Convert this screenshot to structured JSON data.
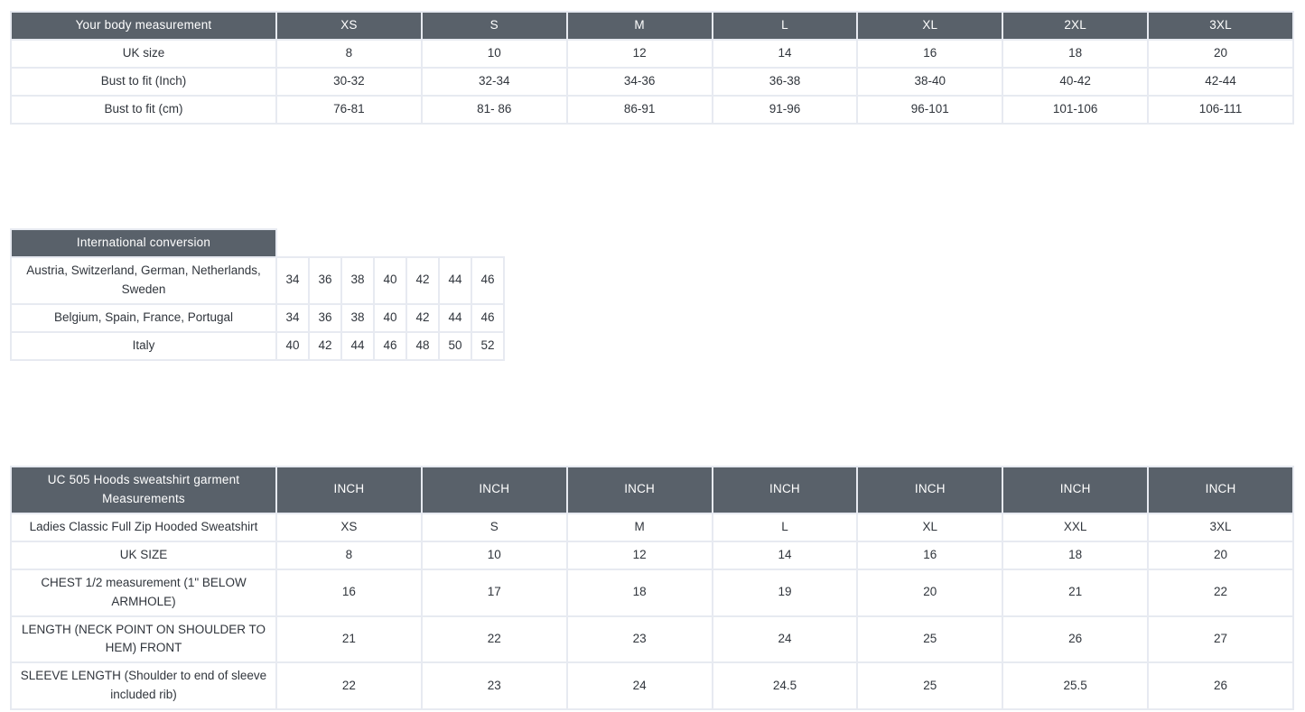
{
  "colors": {
    "header_bg": "#59616a",
    "header_text": "#ffffff",
    "body_text": "#30353c",
    "border": "#e7eaf1",
    "page_bg": "#ffffff"
  },
  "tables": [
    {
      "id": "body-measurement",
      "title": "Your body measurement",
      "columns": [
        "XS",
        "S",
        "M",
        "L",
        "XL",
        "2XL",
        "3XL"
      ],
      "rows": [
        {
          "label": "UK size",
          "values": [
            "8",
            "10",
            "12",
            "14",
            "16",
            "18",
            "20"
          ]
        },
        {
          "label": "Bust to fit (Inch)",
          "values": [
            "30-32",
            "32-34",
            "34-36",
            "36-38",
            "38-40",
            "40-42",
            "42-44"
          ]
        },
        {
          "label": "Bust to fit (cm)",
          "values": [
            "76-81",
            "81- 86",
            "86-91",
            "91-96",
            "96-101",
            "101-106",
            "106-111"
          ]
        }
      ]
    },
    {
      "id": "international-conversion",
      "title": "International conversion",
      "columns": [],
      "rows": [
        {
          "label": "Austria, Switzerland, German, Netherlands, Sweden",
          "values": [
            "34",
            "36",
            "38",
            "40",
            "42",
            "44",
            "46"
          ]
        },
        {
          "label": "Belgium, Spain, France, Portugal",
          "values": [
            "34",
            "36",
            "38",
            "40",
            "42",
            "44",
            "46"
          ]
        },
        {
          "label": "Italy",
          "values": [
            "40",
            "42",
            "44",
            "46",
            "48",
            "50",
            "52"
          ]
        }
      ]
    },
    {
      "id": "garment-measurements",
      "title": "UC 505 Hoods sweatshirt garment Measurements",
      "columns": [
        "INCH",
        "INCH",
        "INCH",
        "INCH",
        "INCH",
        "INCH",
        "INCH"
      ],
      "rows": [
        {
          "label": "Ladies Classic Full Zip Hooded Sweatshirt",
          "values": [
            "XS",
            "S",
            "M",
            "L",
            "XL",
            "XXL",
            "3XL"
          ]
        },
        {
          "label": "UK SIZE",
          "values": [
            "8",
            "10",
            "12",
            "14",
            "16",
            "18",
            "20"
          ]
        },
        {
          "label": "CHEST 1/2 measurement (1\" BELOW ARMHOLE)",
          "values": [
            "16",
            "17",
            "18",
            "19",
            "20",
            "21",
            "22"
          ]
        },
        {
          "label": "LENGTH (NECK POINT ON SHOULDER TO HEM) FRONT",
          "values": [
            "21",
            "22",
            "23",
            "24",
            "25",
            "26",
            "27"
          ]
        },
        {
          "label": "SLEEVE LENGTH (Shoulder to end of sleeve included rib)",
          "values": [
            "22",
            "23",
            "24",
            "24.5",
            "25",
            "25.5",
            "26"
          ]
        }
      ]
    }
  ]
}
